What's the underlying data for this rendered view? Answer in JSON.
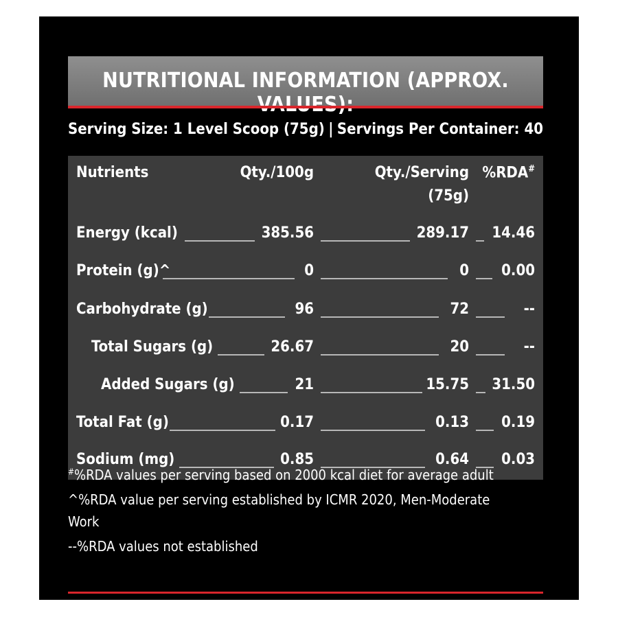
{
  "title": "NUTRITIONAL INFORMATION (APPROX. VALUES):",
  "serving": {
    "size": "Serving Size: 1 Level Scoop (75g)",
    "separator": "|",
    "per_container": "Servings Per Container: 40"
  },
  "headers": {
    "nutrients": "Nutrients",
    "qty100": "Qty./100g",
    "qty_serving": "Qty./Serving",
    "qty_serving_unit": "(75g)",
    "rda": "%RDA",
    "rda_mark": "#"
  },
  "rows": [
    {
      "name": "Energy (kcal)",
      "per100": "385.56",
      "perServing": "289.17",
      "rda": "14.46"
    },
    {
      "name": "Protein (g)^",
      "per100": "0",
      "perServing": "0",
      "rda": "0.00"
    },
    {
      "name": "Carbohydrate (g)",
      "per100": "96",
      "perServing": "72",
      "rda": "--"
    },
    {
      "name": "Total Sugars (g)",
      "per100": "26.67",
      "perServing": "20",
      "rda": "--"
    },
    {
      "name": "Added Sugars (g)",
      "per100": "21",
      "perServing": "15.75",
      "rda": "31.50"
    },
    {
      "name": "Total Fat (g)",
      "per100": "0.17",
      "perServing": "0.13",
      "rda": "0.19"
    },
    {
      "name": "Sodium (mg)",
      "per100": "0.85",
      "perServing": "0.64",
      "rda": "0.03"
    }
  ],
  "footnotes": {
    "note1_mark": "#",
    "note1": "%RDA values per serving based on 2000 kcal diet for average adult",
    "note2_line1": "^%RDA value per serving established by ICMR 2020, Men-Moderate",
    "note2_line2": "Work",
    "note3": "--%RDA values not established"
  },
  "colors": {
    "panel": "#000000",
    "title_bar": "#7f7f7f",
    "table": "#3c3c3c",
    "accent_red": "#d9262c"
  }
}
